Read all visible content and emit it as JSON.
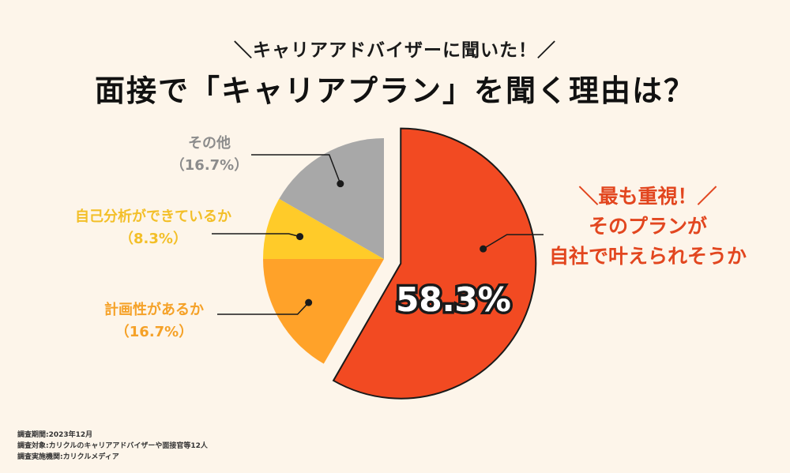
{
  "header": {
    "subtitle": "＼キャリアアドバイザーに聞いた！／",
    "title": "面接で「キャリアプラン」を聞く理由は？"
  },
  "chart_data": {
    "type": "pie",
    "title": "面接で「キャリアプラン」を聞く理由は？",
    "slices": [
      {
        "label": "最も重視！そのプランが自社で叶えられそうか",
        "label_lines": [
          "＼最も重視！／",
          "そのプランが",
          "自社で叶えられそうか"
        ],
        "value": 58.3,
        "pct_label": "58.3%",
        "color": "#f24a22",
        "exploded": true
      },
      {
        "label": "計画性があるか",
        "value": 16.7,
        "pct_label": "（16.7%）",
        "color": "#ffa229",
        "label_color": "#f5a127"
      },
      {
        "label": "自己分析ができているか",
        "value": 8.3,
        "pct_label": "（8.3%）",
        "color": "#ffcb29",
        "label_color": "#f3bf28"
      },
      {
        "label": "その他",
        "value": 16.7,
        "pct_label": "（16.7%）",
        "color": "#a8a8a8",
        "label_color": "#8c8c8c"
      }
    ],
    "highlight_color": "#e2461f"
  },
  "footnotes": [
    "調査期間:2023年12月",
    "調査対象:カリクルのキャリアアドバイザーや面接官等12人",
    "調査実施機関:カリクルメディア"
  ]
}
